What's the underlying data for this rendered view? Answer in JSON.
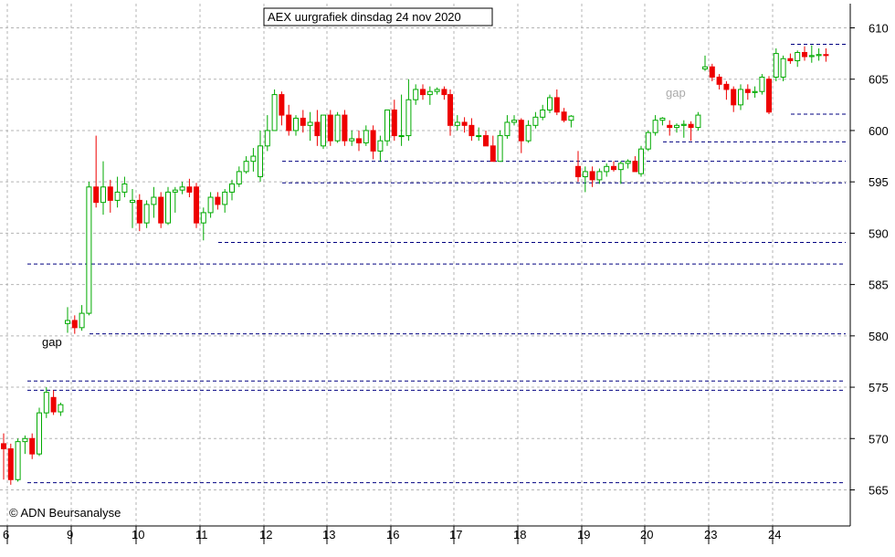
{
  "chart_data": {
    "type": "candlestick",
    "title": "AEX uurgrafiek dinsdag 24 nov 2020",
    "copyright": "© ADN Beursanalyse",
    "ylim": [
      562,
      612
    ],
    "y_ticks": [
      565,
      570,
      575,
      580,
      585,
      590,
      595,
      600,
      605,
      610
    ],
    "x_ticks": [
      "6",
      "9",
      "10",
      "11",
      "12",
      "13",
      "16",
      "17",
      "18",
      "19",
      "20",
      "23",
      "24"
    ],
    "grid": true,
    "annotations": [
      {
        "text": "gap",
        "at": {
          "day": "6",
          "price": 579.0
        }
      },
      {
        "text": "gap",
        "at": {
          "day": "20",
          "price": 603.3
        }
      }
    ],
    "levels": [
      {
        "price": 565.7,
        "from_day": "6"
      },
      {
        "price": 574.7,
        "from_day": "6"
      },
      {
        "price": 575.6,
        "from_day": "6"
      },
      {
        "price": 580.2,
        "from_day": "9"
      },
      {
        "price": 587.0,
        "from_day": "6"
      },
      {
        "price": 589.1,
        "from_day": "11"
      },
      {
        "price": 594.9,
        "from_day": "12"
      },
      {
        "price": 597.0,
        "from_day": "12"
      },
      {
        "price": 598.9,
        "from_day": "20"
      },
      {
        "price": 601.6,
        "from_day": "24"
      },
      {
        "price": 608.4,
        "from_day": "24"
      }
    ],
    "days": [
      {
        "label": "6",
        "candles": [
          [
            569.5,
            570.5,
            566,
            569
          ],
          [
            569,
            569.5,
            565.5,
            566
          ],
          [
            566,
            570,
            565.8,
            569.7
          ],
          [
            569.7,
            570.3,
            568.5,
            570
          ],
          [
            570,
            570.5,
            568,
            568.5
          ],
          [
            568.5,
            573,
            568.3,
            572.5
          ],
          [
            572.5,
            575,
            572,
            574.5
          ],
          [
            574,
            574.7,
            572.3,
            572.6
          ],
          [
            572.6,
            573.5,
            572.2,
            573.3
          ]
        ]
      },
      {
        "label": "9",
        "candles": [
          [
            581.2,
            582.8,
            580.3,
            581.5
          ],
          [
            581.5,
            582,
            580.2,
            580.8
          ],
          [
            580.8,
            583,
            580.5,
            582.2
          ],
          [
            582.2,
            595,
            582,
            594.5
          ],
          [
            594.5,
            599.5,
            592.5,
            593
          ],
          [
            593,
            597,
            591.8,
            594.5
          ],
          [
            594.5,
            595.2,
            592,
            593.2
          ],
          [
            593.2,
            595.5,
            592.5,
            594
          ],
          [
            594,
            595.5,
            593.5,
            594.8
          ]
        ]
      },
      {
        "label": "10",
        "candles": [
          [
            593,
            594.3,
            590.5,
            593.2
          ],
          [
            593.2,
            593.8,
            590.2,
            591
          ],
          [
            591,
            593.2,
            590.5,
            592.8
          ],
          [
            592.8,
            594.5,
            591.5,
            593.5
          ],
          [
            593.5,
            594,
            590.5,
            591
          ],
          [
            591,
            594.5,
            590.8,
            594
          ],
          [
            594,
            594.5,
            592,
            594.2
          ],
          [
            594.2,
            595,
            593.8,
            594.5
          ],
          [
            594.5,
            595.3,
            593.5,
            594
          ]
        ]
      },
      {
        "label": "11",
        "candles": [
          [
            594.5,
            594.9,
            590.5,
            591
          ],
          [
            591,
            592.5,
            589.3,
            592
          ],
          [
            592,
            594,
            591.5,
            593.5
          ],
          [
            593.5,
            594,
            592.3,
            592.8
          ],
          [
            592.8,
            594.3,
            592,
            594
          ],
          [
            594,
            595.2,
            593.2,
            594.8
          ],
          [
            594.8,
            596.5,
            594.5,
            596
          ],
          [
            596,
            597.5,
            595.8,
            597
          ],
          [
            597,
            598.3,
            596,
            597.5
          ]
        ]
      },
      {
        "label": "12",
        "candles": [
          [
            595.5,
            600,
            595,
            598.5
          ],
          [
            598.5,
            601.5,
            598,
            600
          ],
          [
            600,
            604,
            600,
            603.5
          ],
          [
            603.5,
            603.8,
            600.5,
            601.5
          ],
          [
            601.5,
            602.5,
            599.5,
            600
          ],
          [
            600,
            601.5,
            599.5,
            601.2
          ],
          [
            601.2,
            602,
            599.8,
            600.5
          ],
          [
            600.5,
            601.8,
            599,
            600.8
          ],
          [
            600.8,
            602,
            598.5,
            599.5
          ]
        ]
      },
      {
        "label": "13",
        "candles": [
          [
            598.5,
            601.5,
            598.2,
            601.5
          ],
          [
            601.5,
            602,
            598.5,
            599
          ],
          [
            599,
            601.8,
            598.8,
            601.5
          ],
          [
            601.5,
            602,
            598.5,
            599
          ],
          [
            599,
            600,
            598.5,
            599.2
          ],
          [
            599.2,
            600,
            598,
            598.8
          ],
          [
            598.8,
            600.5,
            598.5,
            600
          ],
          [
            600,
            600.5,
            597.2,
            598
          ],
          [
            598,
            599.5,
            597,
            599
          ]
        ]
      },
      {
        "label": "16",
        "candles": [
          [
            599,
            602,
            598.5,
            602
          ],
          [
            602,
            603,
            599,
            599.5
          ],
          [
            599.5,
            603.5,
            598.5,
            599.5
          ],
          [
            599.5,
            605,
            599,
            603
          ],
          [
            603,
            604.5,
            602.5,
            604
          ],
          [
            604,
            604.5,
            603,
            603.5
          ],
          [
            603.5,
            604.3,
            602.5,
            603.8
          ],
          [
            603.8,
            604.2,
            603.5,
            604
          ],
          [
            604,
            604.3,
            603,
            603.5
          ]
        ]
      },
      {
        "label": "17",
        "candles": [
          [
            603.5,
            604,
            599.5,
            600.5
          ],
          [
            600.5,
            601.5,
            600,
            600.8
          ],
          [
            600.8,
            601.3,
            599.8,
            600.5
          ],
          [
            600.5,
            601.2,
            599,
            599.5
          ],
          [
            599.5,
            600.3,
            599,
            599.5
          ],
          [
            599.5,
            600,
            598.5,
            598.5
          ],
          [
            598.5,
            599.5,
            597,
            597
          ],
          [
            597,
            600,
            597,
            599.5
          ],
          [
            599.5,
            601.5,
            599.2,
            600.8
          ]
        ]
      },
      {
        "label": "18",
        "candles": [
          [
            600.8,
            601.5,
            600.5,
            601
          ],
          [
            601,
            601.2,
            597.8,
            599
          ],
          [
            599,
            601,
            598.8,
            600.5
          ],
          [
            600.5,
            601.8,
            600.2,
            601.3
          ],
          [
            601.3,
            602.5,
            601,
            602
          ],
          [
            602,
            603.5,
            601.7,
            603.2
          ],
          [
            603.2,
            604,
            601.5,
            601.8
          ],
          [
            601.8,
            602.2,
            600.8,
            601
          ],
          [
            601,
            601.5,
            600.3,
            601.4
          ]
        ]
      },
      {
        "label": "19",
        "candles": [
          [
            596.5,
            598,
            595,
            595.5
          ],
          [
            595.5,
            596.5,
            594,
            596
          ],
          [
            596,
            596.5,
            594.5,
            595.2
          ],
          [
            595.2,
            596.3,
            594.8,
            596
          ],
          [
            596,
            596.8,
            595.5,
            596.5
          ],
          [
            596.5,
            597,
            596,
            596.2
          ],
          [
            596.2,
            597,
            594.8,
            596.8
          ],
          [
            596.8,
            597.2,
            596.3,
            597
          ],
          [
            597,
            597.5,
            596,
            596
          ]
        ]
      },
      {
        "label": "20",
        "candles": [
          [
            595.8,
            598.5,
            595.5,
            598.2
          ],
          [
            598.2,
            600,
            598,
            599.8
          ],
          [
            599.8,
            601.5,
            599.5,
            601
          ],
          [
            601,
            601.3,
            600.5,
            601.2
          ],
          [
            600.5,
            601,
            599.5,
            600.3
          ],
          [
            600.3,
            600.7,
            599.8,
            600.5
          ],
          [
            600.5,
            601,
            599.3,
            600.6
          ],
          [
            600.6,
            600.9,
            599,
            600.3
          ],
          [
            600.3,
            601.8,
            600,
            601.5
          ]
        ]
      },
      {
        "label": "23",
        "candles": [
          [
            606,
            607.3,
            605.8,
            606.2
          ],
          [
            606.2,
            606.5,
            604.8,
            605.2
          ],
          [
            605.2,
            605.5,
            604,
            604.5
          ],
          [
            604.5,
            604.8,
            603,
            604
          ],
          [
            604,
            604.3,
            601.8,
            602.5
          ],
          [
            602.5,
            604.5,
            602,
            604
          ],
          [
            604,
            604.5,
            603,
            603.7
          ],
          [
            603.7,
            604.3,
            603.2,
            603.8
          ],
          [
            603.8,
            605.5,
            603.5,
            605.2
          ]
        ]
      },
      {
        "label": "24",
        "candles": [
          [
            605,
            605.3,
            601.6,
            601.8
          ],
          [
            605.2,
            608,
            604.8,
            607.5
          ],
          [
            605.2,
            607.3,
            604.8,
            607
          ],
          [
            607,
            607.5,
            606.5,
            606.8
          ],
          [
            606.8,
            607.8,
            606.2,
            607.6
          ],
          [
            607.6,
            608.2,
            606.8,
            607.2
          ],
          [
            607.2,
            608.3,
            606.6,
            607.3
          ],
          [
            607.3,
            608,
            606.8,
            607.4
          ],
          [
            607.4,
            608,
            606.7,
            607.3
          ]
        ]
      }
    ]
  },
  "colors": {
    "up": "#00aa00",
    "down": "#ee0000",
    "wick_up": "#00aa00",
    "wick_down": "#ee0000",
    "grid": "#b4b4b4",
    "level_line": "#000080",
    "gap_label": "#aaaaaa",
    "axis": "#000000",
    "background": "#ffffff"
  }
}
